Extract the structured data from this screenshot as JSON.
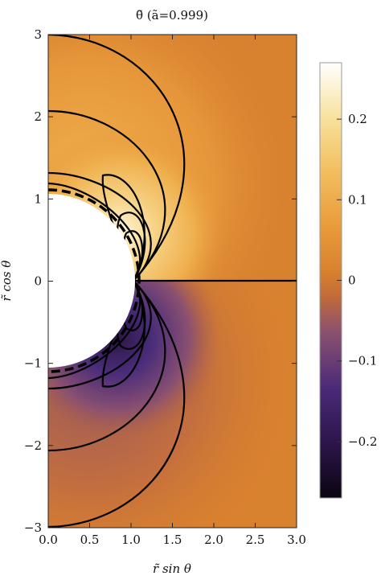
{
  "chart_data": {
    "type": "heatmap",
    "title": "θ̃ (ã=0.999)",
    "xlabel": "r̃ sin θ",
    "ylabel": "r̃ cos θ",
    "xlim": [
      0.0,
      3.0
    ],
    "ylim": [
      -3,
      3
    ],
    "x_ticks": [
      "0.0",
      "0.5",
      "1.0",
      "1.5",
      "2.0",
      "2.5",
      "3.0"
    ],
    "y_ticks": [
      "3",
      "2",
      "1",
      "0",
      "−1",
      "−2",
      "−3"
    ],
    "x_tick_values": [
      0.0,
      0.5,
      1.0,
      1.5,
      2.0,
      2.5,
      3.0
    ],
    "y_tick_values": [
      3,
      2,
      1,
      0,
      -1,
      -2,
      -3
    ],
    "colorbar": {
      "range": [
        -0.27,
        0.27
      ],
      "tick_values": [
        0.2,
        0.1,
        0,
        -0.1,
        -0.2
      ],
      "tick_labels": [
        "0.2",
        "0.1",
        "0",
        "−0.1",
        "−0.2"
      ],
      "colors": [
        "#0a0510",
        "#2a1448",
        "#4a2a78",
        "#7a4a80",
        "#b06848",
        "#d8812f",
        "#e99a3a",
        "#f2be5e",
        "#f8e3a2",
        "#ffffff"
      ]
    },
    "excised_region": "horizon",
    "horizon_radius": 1.04,
    "contour_levels": [
      -0.2,
      -0.15,
      -0.1,
      -0.05,
      0,
      0.05,
      0.1,
      0.15,
      0.2
    ],
    "grid": false
  }
}
